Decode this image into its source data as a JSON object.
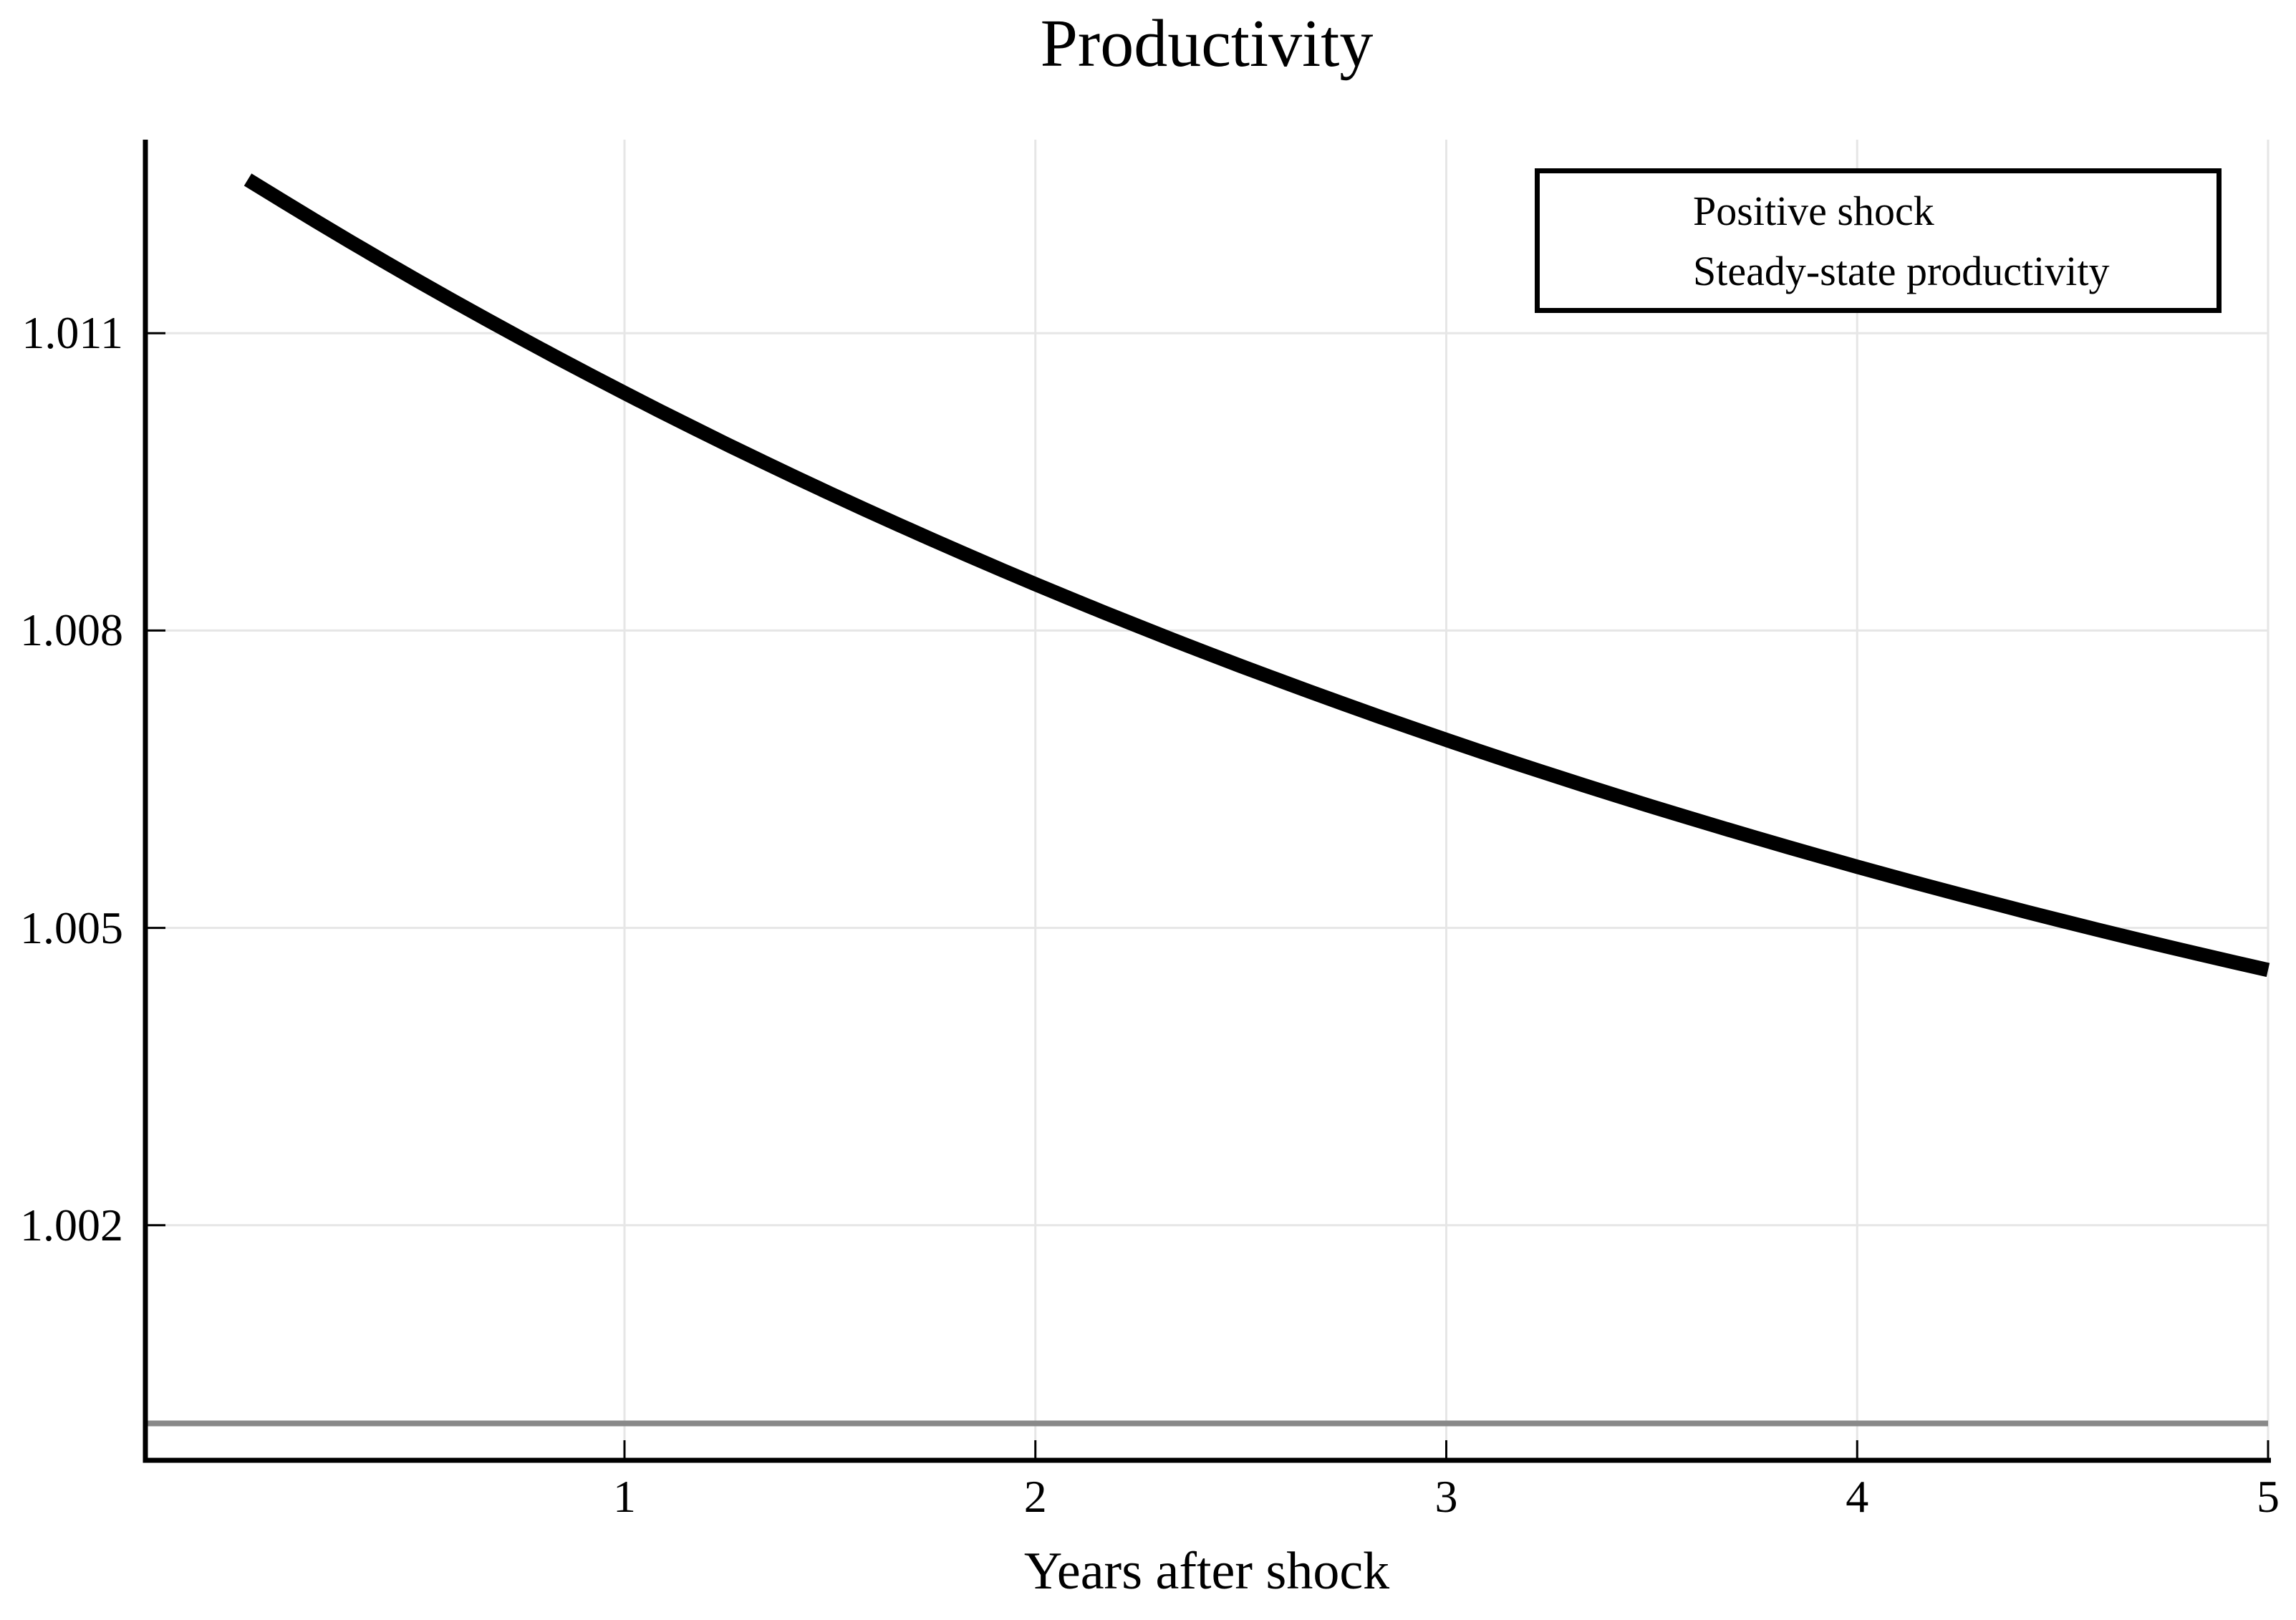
{
  "chart_data": {
    "type": "line",
    "title": "Productivity",
    "xlabel": "Years after shock",
    "ylabel": "",
    "xlim": [
      -0.166,
      5.0
    ],
    "ylim": [
      0.999628,
      1.012953
    ],
    "grid": true,
    "legend": {
      "position": "top-right"
    },
    "xticks": {
      "values": [
        1,
        2,
        3,
        4,
        5
      ],
      "labels": [
        "1",
        "2",
        "3",
        "4",
        "5"
      ]
    },
    "yticks": {
      "values": [
        1.002,
        1.005,
        1.008,
        1.011
      ],
      "labels": [
        "1.002",
        "1.005",
        "1.008",
        "1.011"
      ]
    },
    "colors": {
      "positive_shock": "#000000",
      "steady_state": "#898989",
      "grid": "#e6e6e6",
      "axis": "#000000",
      "text": "#000000"
    },
    "series": [
      {
        "name": "Positive shock",
        "color": "#000000",
        "stroke_width": 20,
        "x": [
          0.0833,
          0.1667,
          0.25,
          0.3333,
          0.4167,
          0.5,
          0.5833,
          0.6667,
          0.75,
          0.8333,
          0.9167,
          1.0,
          1.0833,
          1.1667,
          1.25,
          1.3333,
          1.4167,
          1.5,
          1.5833,
          1.6667,
          1.75,
          1.8333,
          1.9167,
          2.0,
          2.0833,
          2.1667,
          2.25,
          2.3333,
          2.4167,
          2.5,
          2.5833,
          2.6667,
          2.75,
          2.8333,
          2.9167,
          3.0,
          3.0833,
          3.1667,
          3.25,
          3.3333,
          3.4167,
          3.5,
          3.5833,
          3.6667,
          3.75,
          3.8333,
          3.9167,
          4.0,
          4.0833,
          4.1667,
          4.25,
          4.3333,
          4.4167,
          4.5,
          4.5833,
          4.6667,
          4.75,
          4.8333,
          4.9167,
          5.0
        ],
        "y": [
          1.01255,
          1.012337,
          1.012128,
          1.011922,
          1.01172,
          1.011521,
          1.011326,
          1.011134,
          1.010945,
          1.010759,
          1.010577,
          1.010398,
          1.010221,
          1.010048,
          1.009877,
          1.00971,
          1.009545,
          1.009383,
          1.009224,
          1.009068,
          1.008914,
          1.008763,
          1.008614,
          1.008468,
          1.008325,
          1.008183,
          1.008045,
          1.007908,
          1.007774,
          1.007642,
          1.007513,
          1.007385,
          1.00726,
          1.007137,
          1.007016,
          1.006897,
          1.00678,
          1.006665,
          1.006552,
          1.006441,
          1.006332,
          1.006224,
          1.006119,
          1.006015,
          1.005913,
          1.005813,
          1.005714,
          1.005617,
          1.005522,
          1.005428,
          1.005336,
          1.005246,
          1.005157,
          1.005069,
          1.004983,
          1.004899,
          1.004816,
          1.004734,
          1.004654,
          1.004575
        ]
      },
      {
        "name": "Steady-state productivity",
        "color": "#898989",
        "stroke_width": 8,
        "x": [
          -0.166,
          5.0
        ],
        "y": [
          1.0,
          1.0
        ]
      }
    ]
  }
}
